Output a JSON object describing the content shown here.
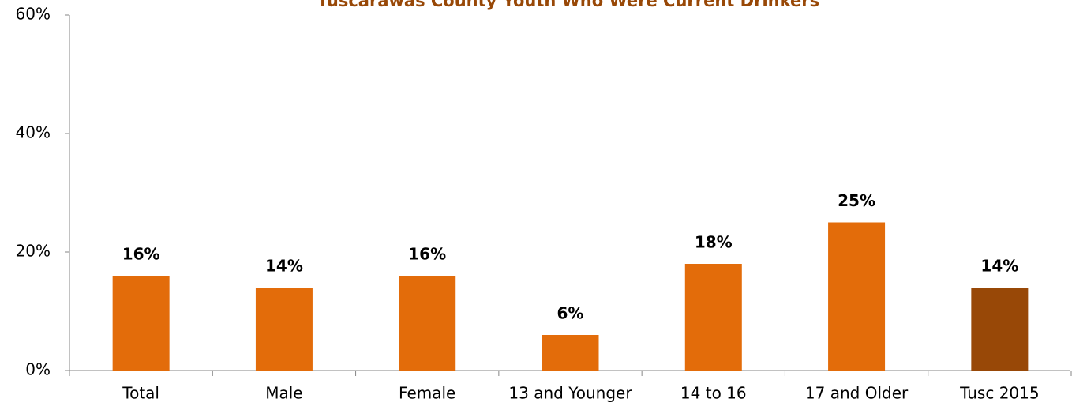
{
  "chart_data": {
    "type": "bar",
    "title": "Tuscarawas County Youth Who Were Current Drinkers",
    "categories": [
      "Total",
      "Male",
      "Female",
      "13 and Younger",
      "14 to 16",
      "17 and Older",
      "Tusc 2015"
    ],
    "values": [
      16,
      14,
      16,
      6,
      18,
      25,
      14
    ],
    "value_labels": [
      "16%",
      "14%",
      "16%",
      "6%",
      "18%",
      "25%",
      "14%"
    ],
    "colors": [
      "#e36c0a",
      "#e36c0a",
      "#e36c0a",
      "#e36c0a",
      "#e36c0a",
      "#e36c0a",
      "#984807"
    ],
    "ylim": [
      0,
      60
    ],
    "yticks": [
      {
        "value": 0,
        "label": "0%"
      },
      {
        "value": 20,
        "label": "20%"
      },
      {
        "value": 40,
        "label": "40%"
      },
      {
        "value": 60,
        "label": "60%"
      }
    ],
    "grid": false
  }
}
